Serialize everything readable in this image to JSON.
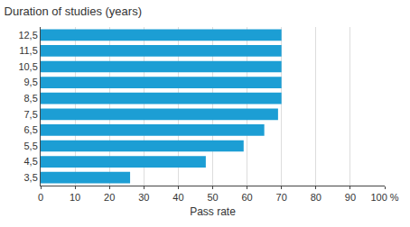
{
  "chart_data": {
    "type": "bar",
    "orientation": "horizontal",
    "title": "Duration of studies (years)",
    "xlabel": "Pass rate",
    "categories": [
      "3,5",
      "4,5",
      "5,5",
      "6,5",
      "7,5",
      "8,5",
      "9,5",
      "10,5",
      "11,5",
      "12,5"
    ],
    "values": [
      26,
      48,
      59,
      65,
      69,
      70,
      70,
      70,
      70,
      70
    ],
    "color": "#1c9ed4",
    "xlim": [
      0,
      100
    ],
    "xticks": [
      0,
      10,
      20,
      30,
      40,
      50,
      60,
      70,
      80,
      90,
      {
        "value": 100,
        "label": "100 %"
      }
    ],
    "grid": true
  }
}
